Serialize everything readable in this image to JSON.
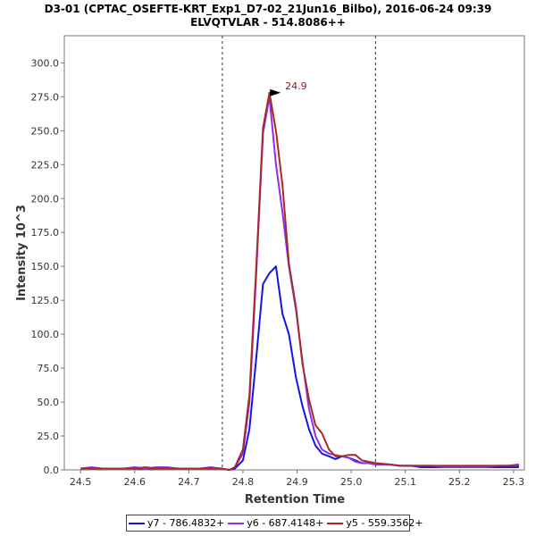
{
  "chart_data": {
    "type": "line",
    "title": "D3-01 (CPTAC_OSEFTE-KRT_Exp1_D7-02_21Jun16_Bilbo), 2016-06-24 09:39",
    "subtitle": "ELVQTVLAR - 514.8086++",
    "xlabel": "Retention Time",
    "ylabel": "Intensity 10^3",
    "xlim": [
      24.47,
      25.32
    ],
    "ylim": [
      0,
      320
    ],
    "xticks": [
      24.5,
      24.6,
      24.7,
      24.8,
      24.9,
      25.0,
      25.1,
      25.2,
      25.3
    ],
    "xtick_labels": [
      "24.5",
      "24.6",
      "24.7",
      "24.8",
      "24.9",
      "25.0",
      "25.1",
      "25.2",
      "25.3"
    ],
    "yticks": [
      0,
      25,
      50,
      75,
      100,
      125,
      150,
      175,
      200,
      225,
      250,
      275,
      300
    ],
    "ytick_labels": [
      "0.0",
      "25.0",
      "50.0",
      "75.0",
      "100.0",
      "125.0",
      "150.0",
      "175.0",
      "200.0",
      "225.0",
      "250.0",
      "275.0",
      "300.0"
    ],
    "vlines": [
      24.762,
      25.045
    ],
    "peak_annotation": {
      "label": "24.9",
      "x": 24.873,
      "y": 278,
      "color": "#8b1a1a"
    },
    "series": [
      {
        "name": "y7 - 786.4832+",
        "color": "#1414e6",
        "x": [
          24.5,
          24.52,
          24.54,
          24.56,
          24.58,
          24.6,
          24.62,
          24.64,
          24.66,
          24.68,
          24.7,
          24.72,
          24.74,
          24.76,
          24.775,
          24.785,
          24.8,
          24.812,
          24.824,
          24.837,
          24.849,
          24.861,
          24.873,
          24.885,
          24.898,
          24.91,
          24.922,
          24.934,
          24.946,
          24.959,
          24.971,
          24.983,
          24.995,
          25.008,
          25.02,
          25.032,
          25.045,
          25.07,
          25.09,
          25.11,
          25.13,
          25.15,
          25.17,
          25.19,
          25.21,
          25.23,
          25.25,
          25.27,
          25.29,
          25.31
        ],
        "values": [
          1,
          1,
          1,
          1,
          1,
          1,
          1,
          1,
          1,
          1,
          1,
          1,
          1,
          1,
          0,
          1,
          7,
          30,
          80,
          137,
          145,
          150,
          115,
          100,
          68,
          47,
          30,
          18,
          12,
          10,
          8,
          10,
          9,
          7,
          5,
          5,
          4,
          4,
          3,
          3,
          2,
          2,
          2,
          2,
          2,
          2,
          2,
          2,
          2,
          2
        ]
      },
      {
        "name": "y6 - 687.4148+",
        "color": "#8f2fe8",
        "x": [
          24.5,
          24.52,
          24.54,
          24.56,
          24.58,
          24.6,
          24.62,
          24.64,
          24.66,
          24.68,
          24.7,
          24.72,
          24.74,
          24.76,
          24.775,
          24.785,
          24.8,
          24.812,
          24.824,
          24.837,
          24.849,
          24.861,
          24.873,
          24.885,
          24.898,
          24.91,
          24.922,
          24.934,
          24.946,
          24.959,
          24.971,
          24.983,
          24.995,
          25.008,
          25.02,
          25.032,
          25.045,
          25.07,
          25.09,
          25.11,
          25.13,
          25.15,
          25.17,
          25.19,
          25.21,
          25.23,
          25.25,
          25.27,
          25.29,
          25.31
        ],
        "values": [
          1,
          2,
          1,
          1,
          1,
          2,
          1,
          2,
          2,
          1,
          1,
          1,
          2,
          1,
          0,
          2,
          12,
          50,
          140,
          248,
          275,
          225,
          190,
          150,
          118,
          80,
          45,
          25,
          15,
          12,
          11,
          10,
          9,
          6,
          5,
          5,
          4,
          4,
          3,
          3,
          3,
          3,
          2,
          2,
          2,
          2,
          2,
          3,
          3,
          4
        ]
      },
      {
        "name": "y5 - 559.3562+",
        "color": "#a52a2a",
        "x": [
          24.5,
          24.52,
          24.54,
          24.56,
          24.58,
          24.6,
          24.62,
          24.64,
          24.66,
          24.68,
          24.7,
          24.72,
          24.74,
          24.76,
          24.775,
          24.785,
          24.8,
          24.812,
          24.824,
          24.837,
          24.849,
          24.861,
          24.873,
          24.885,
          24.898,
          24.91,
          24.922,
          24.934,
          24.946,
          24.959,
          24.971,
          24.983,
          24.995,
          25.008,
          25.02,
          25.032,
          25.045,
          25.07,
          25.09,
          25.11,
          25.13,
          25.15,
          25.17,
          25.19,
          25.21,
          25.23,
          25.25,
          25.27,
          25.29,
          25.31
        ],
        "values": [
          1,
          1,
          1,
          1,
          1,
          1,
          2,
          1,
          1,
          1,
          1,
          1,
          1,
          1,
          0,
          2,
          15,
          55,
          145,
          252,
          278,
          250,
          210,
          152,
          120,
          78,
          52,
          33,
          27,
          15,
          10,
          10,
          11,
          11,
          7,
          6,
          5,
          4,
          3,
          3,
          3,
          3,
          3,
          3,
          3,
          3,
          3,
          3,
          3,
          3
        ]
      }
    ],
    "legend_position": "bottom-center"
  }
}
